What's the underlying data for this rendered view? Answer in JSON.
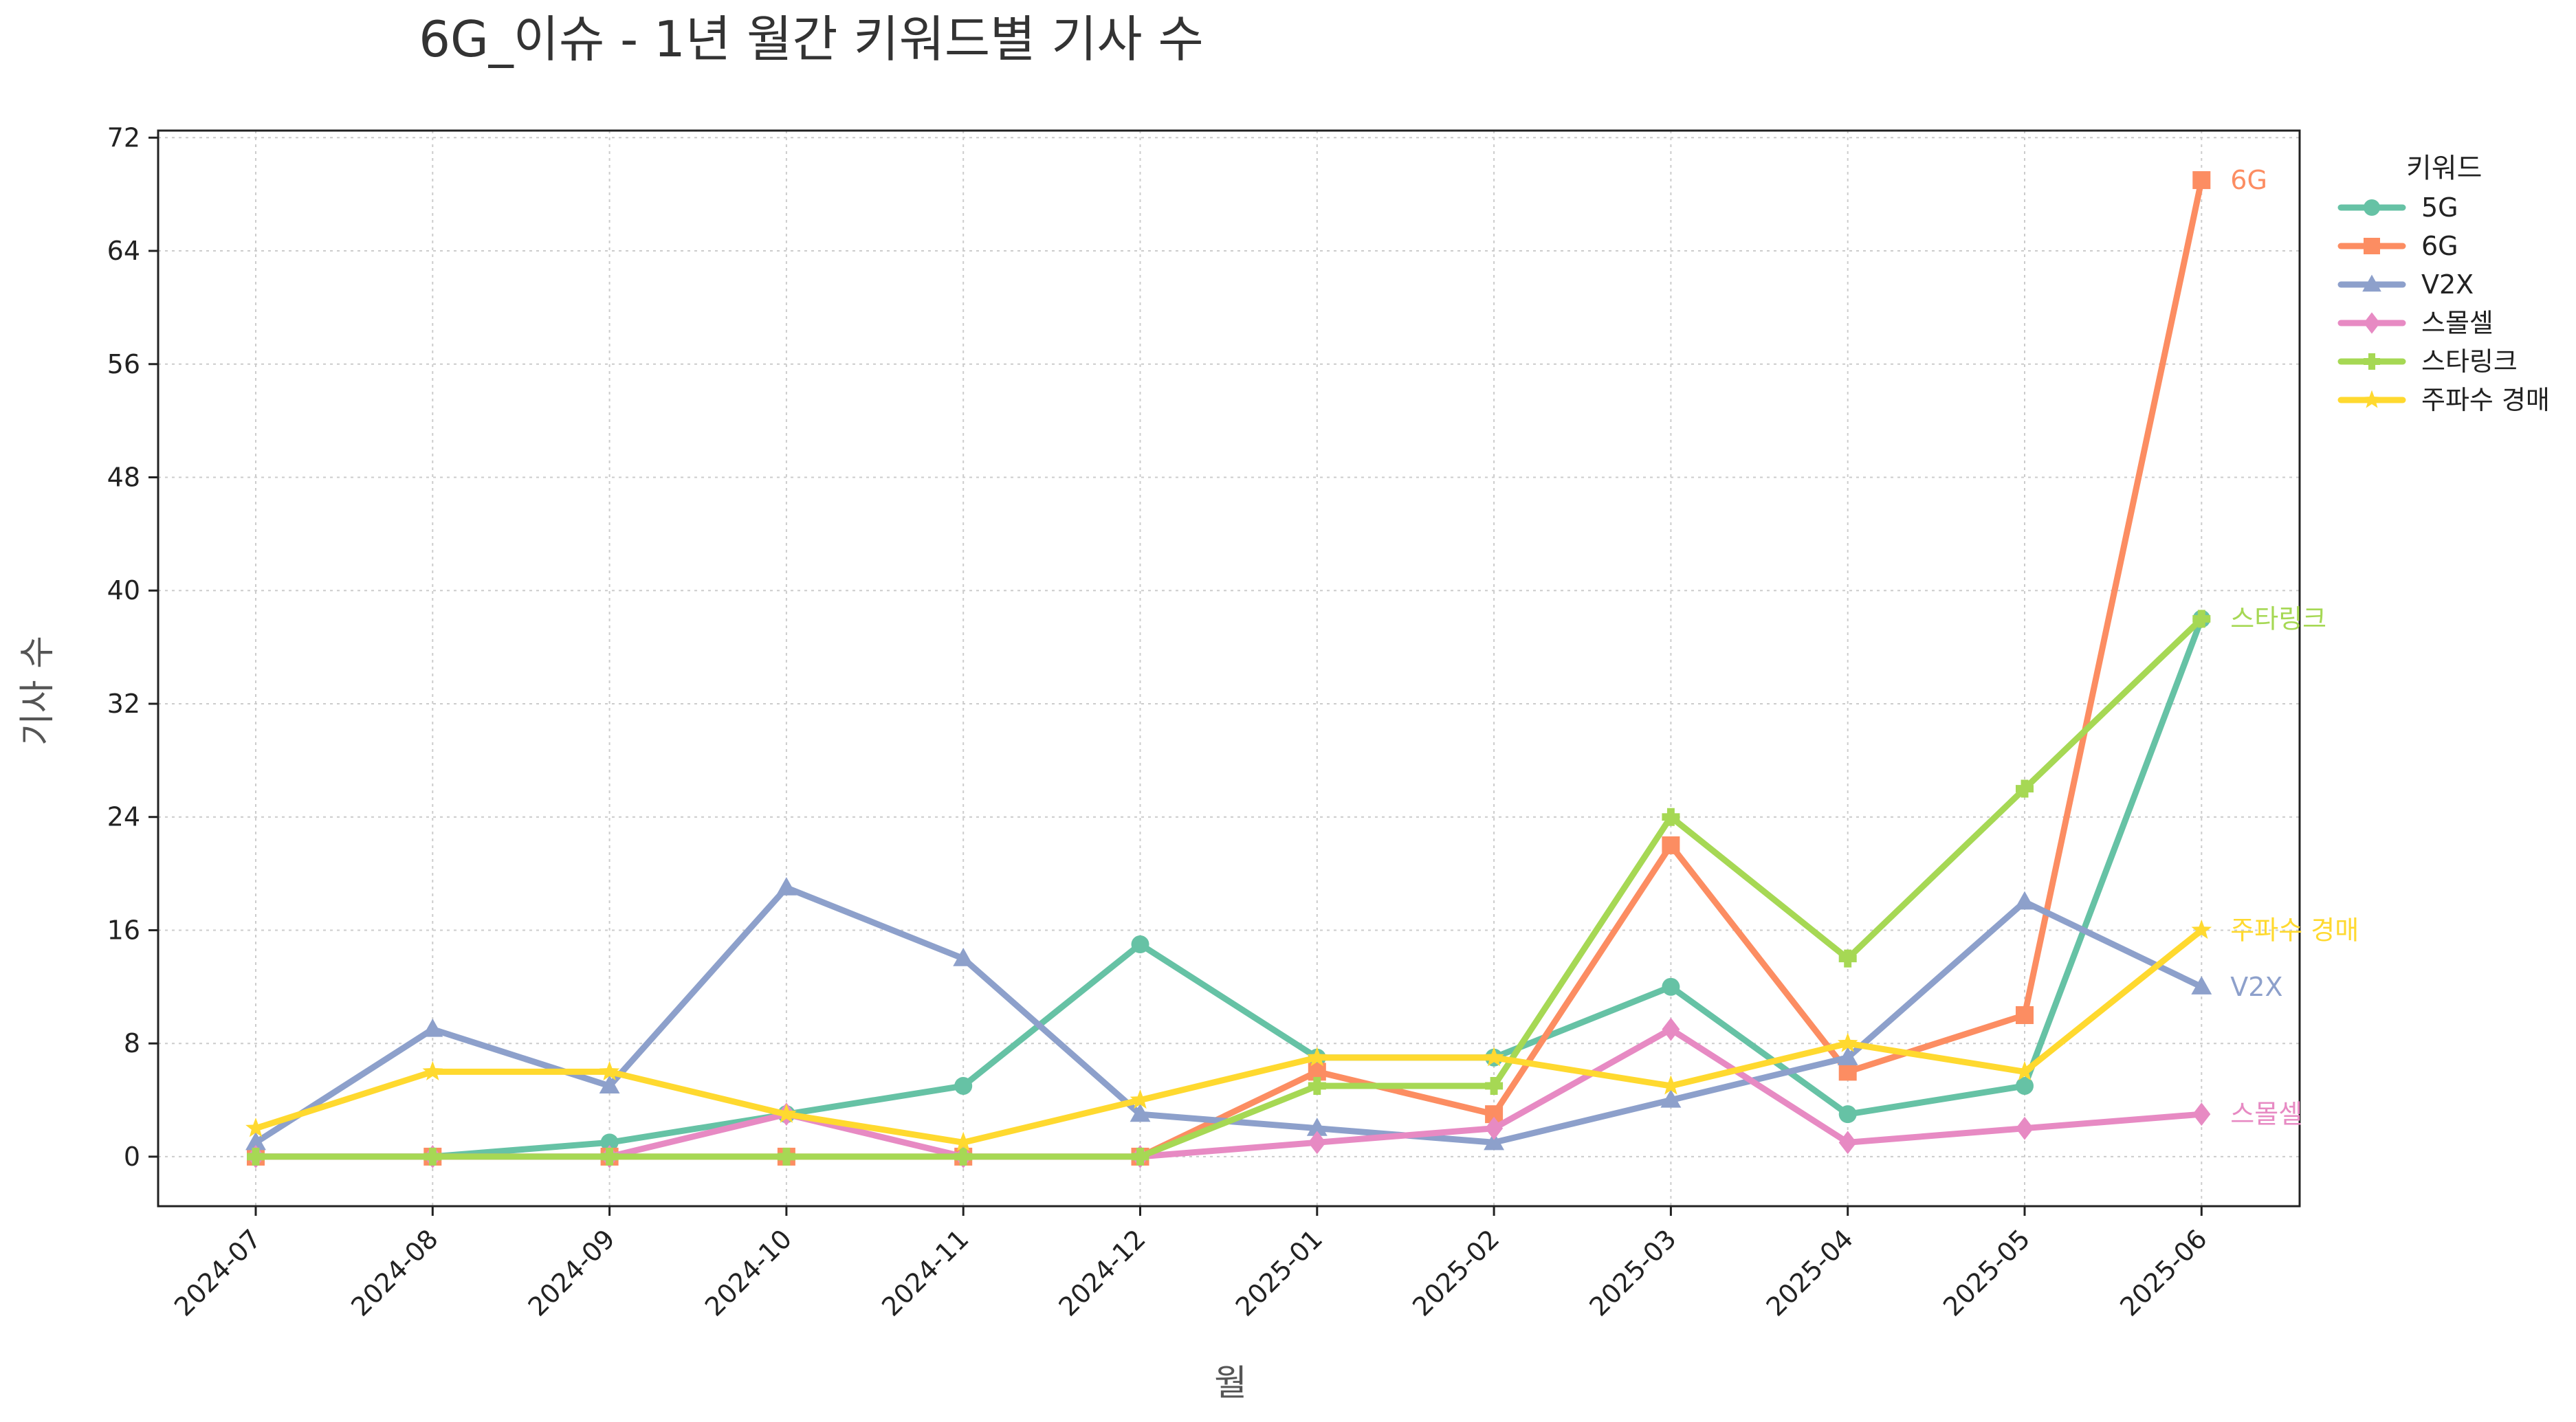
{
  "chart_data": {
    "type": "line",
    "title": "6G_이슈 - 1년 월간 키워드별 기사 수",
    "xlabel": "월",
    "ylabel": "기사 수",
    "ylim": [
      -3.5,
      72.5
    ],
    "yticks": [
      0,
      8,
      16,
      24,
      32,
      40,
      48,
      56,
      64,
      72
    ],
    "grid": true,
    "legend_title": "키워드",
    "legend_placement": "outside-top-right",
    "categories": [
      "2024-07",
      "2024-08",
      "2024-09",
      "2024-10",
      "2024-11",
      "2024-12",
      "2025-01",
      "2025-02",
      "2025-03",
      "2025-04",
      "2025-05",
      "2025-06"
    ],
    "series": [
      {
        "name": "5G",
        "color": "#66c2a5",
        "marker": "circle",
        "values": [
          0,
          0,
          1,
          3,
          5,
          15,
          7,
          7,
          12,
          3,
          5,
          38
        ],
        "end_label": false
      },
      {
        "name": "6G",
        "color": "#fc8d62",
        "marker": "square",
        "values": [
          0,
          0,
          0,
          0,
          0,
          0,
          6,
          3,
          22,
          6,
          10,
          69
        ],
        "end_label": true
      },
      {
        "name": "V2X",
        "color": "#8da0cb",
        "marker": "triangle",
        "values": [
          1,
          9,
          5,
          19,
          14,
          3,
          2,
          1,
          4,
          7,
          18,
          12
        ],
        "end_label": true
      },
      {
        "name": "스몰셀",
        "color": "#e78ac3",
        "marker": "diamond",
        "values": [
          0,
          0,
          0,
          3,
          0,
          0,
          1,
          2,
          9,
          1,
          2,
          3
        ],
        "end_label": true
      },
      {
        "name": "스타링크",
        "color": "#a6d854",
        "marker": "plus",
        "values": [
          0,
          0,
          0,
          0,
          0,
          0,
          5,
          5,
          24,
          14,
          26,
          38
        ],
        "end_label": true
      },
      {
        "name": "주파수 경매",
        "color": "#ffd92f",
        "marker": "star",
        "values": [
          2,
          6,
          6,
          3,
          1,
          4,
          7,
          7,
          5,
          8,
          6,
          16
        ],
        "end_label": true
      }
    ]
  }
}
